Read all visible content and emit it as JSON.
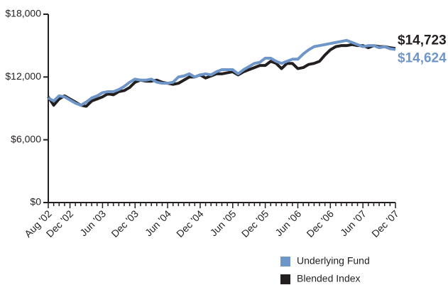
{
  "chart_data": {
    "type": "line",
    "categories": [
      "Aug '02",
      null,
      null,
      null,
      "Dec '02",
      null,
      null,
      null,
      null,
      null,
      "Jun '03",
      null,
      null,
      null,
      null,
      null,
      "Dec '03",
      null,
      null,
      null,
      null,
      null,
      "Jun '04",
      null,
      null,
      null,
      null,
      null,
      "Dec '04",
      null,
      null,
      null,
      null,
      null,
      "Jun '05",
      null,
      null,
      null,
      null,
      null,
      "Dec '05",
      null,
      null,
      null,
      null,
      null,
      "Jun '06",
      null,
      null,
      null,
      null,
      null,
      "Dec '06",
      null,
      null,
      null,
      null,
      null,
      "Jun '07",
      null,
      null,
      null,
      null,
      null,
      "Dec '07"
    ],
    "series": [
      {
        "name": "Underlying Fund",
        "color": "#6f96c8",
        "values": [
          10000,
          9700,
          10200,
          10100,
          9800,
          9500,
          9300,
          9600,
          10000,
          10200,
          10500,
          10600,
          10600,
          10800,
          11100,
          11500,
          11800,
          11700,
          11700,
          11800,
          11500,
          11400,
          11400,
          11500,
          12000,
          12100,
          12300,
          12000,
          12200,
          12300,
          12200,
          12500,
          12700,
          12700,
          12700,
          12300,
          12700,
          13000,
          13300,
          13400,
          13800,
          13800,
          13500,
          13300,
          13500,
          13700,
          13700,
          14200,
          14600,
          14900,
          15000,
          15100,
          15200,
          15300,
          15400,
          15500,
          15300,
          15100,
          14900,
          15000,
          15000,
          14800,
          14900,
          14700,
          14624
        ],
        "value_labels": [
          null,
          null,
          null,
          null,
          null,
          null,
          null,
          null,
          null,
          null,
          null,
          null,
          null,
          null,
          null,
          null,
          null,
          null,
          null,
          null,
          null,
          null,
          null,
          null,
          null,
          null,
          null,
          null,
          null,
          null,
          null,
          null,
          null,
          null,
          null,
          null,
          null,
          null,
          null,
          null,
          null,
          null,
          null,
          null,
          null,
          null,
          null,
          null,
          null,
          null,
          null,
          null,
          null,
          null,
          null,
          null,
          null,
          null,
          null,
          null,
          null,
          null,
          null,
          null,
          "$14,624"
        ]
      },
      {
        "name": "Blended Index",
        "color": "#231f20",
        "values": [
          10100,
          9300,
          9900,
          10200,
          9900,
          9600,
          9300,
          9200,
          9700,
          9900,
          10100,
          10400,
          10300,
          10600,
          10700,
          11000,
          11500,
          11700,
          11600,
          11600,
          11700,
          11500,
          11400,
          11300,
          11400,
          11700,
          12000,
          12000,
          12200,
          11900,
          12100,
          12300,
          12300,
          12400,
          12500,
          12200,
          12500,
          12700,
          12900,
          13100,
          13100,
          13500,
          13300,
          12800,
          13300,
          13300,
          12800,
          12900,
          13200,
          13300,
          13500,
          14100,
          14600,
          14900,
          15000,
          15000,
          15100,
          15000,
          15000,
          14800,
          15000,
          14900,
          14900,
          14800,
          14723
        ],
        "value_labels": [
          null,
          null,
          null,
          null,
          null,
          null,
          null,
          null,
          null,
          null,
          null,
          null,
          null,
          null,
          null,
          null,
          null,
          null,
          null,
          null,
          null,
          null,
          null,
          null,
          null,
          null,
          null,
          null,
          null,
          null,
          null,
          null,
          null,
          null,
          null,
          null,
          null,
          null,
          null,
          null,
          null,
          null,
          null,
          null,
          null,
          null,
          null,
          null,
          null,
          null,
          null,
          null,
          null,
          null,
          null,
          null,
          null,
          null,
          null,
          null,
          null,
          null,
          null,
          null,
          "$14,723"
        ]
      }
    ],
    "ylim": [
      0,
      18000
    ],
    "yticks": [
      {
        "value": 0,
        "label": "$0"
      },
      {
        "value": 6000,
        "label": "$6,000"
      },
      {
        "value": 12000,
        "label": "$12,000"
      },
      {
        "value": 18000,
        "label": "$18,000"
      }
    ]
  }
}
